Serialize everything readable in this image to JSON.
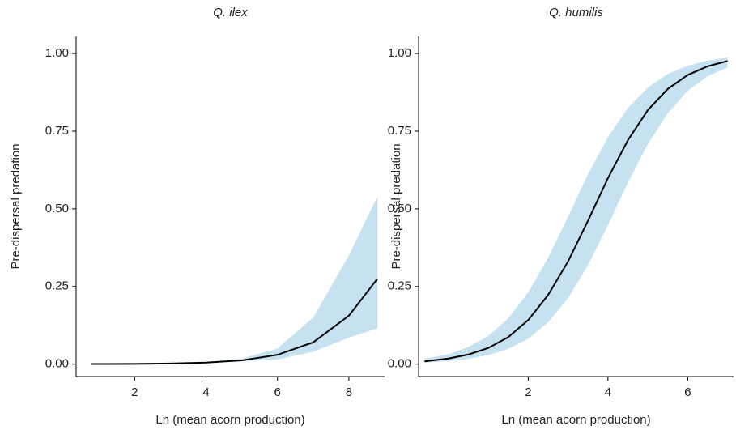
{
  "chart_data": [
    {
      "type": "line",
      "title": "Q. ilex",
      "x_label": "Ln (mean acorn production)",
      "y_label": "Pre-dispersal predation",
      "x": [
        0.77,
        1,
        2,
        3,
        4,
        5,
        6,
        7,
        8,
        8.8
      ],
      "series": [
        {
          "color": "#000000",
          "values": [
            0.0003,
            0.0003,
            0.0008,
            0.002,
            0.005,
            0.012,
            0.03,
            0.07,
            0.156,
            0.275
          ]
        }
      ],
      "band": {
        "color": "#c6e2f0",
        "lower": [
          0.0002,
          0.0002,
          0.0005,
          0.0015,
          0.004,
          0.009,
          0.015,
          0.04,
          0.085,
          0.115
        ],
        "upper": [
          0.0005,
          0.0005,
          0.001,
          0.003,
          0.007,
          0.018,
          0.05,
          0.15,
          0.35,
          0.54
        ]
      },
      "xlim": [
        0.36,
        9.0
      ],
      "ylim": [
        -0.04,
        1.055
      ],
      "xticks": [
        2,
        4,
        6,
        8
      ],
      "yticks": [
        {
          "value": 0,
          "label": "0.00"
        },
        {
          "value": 0.25,
          "label": "0.25"
        },
        {
          "value": 0.5,
          "label": "0.50"
        },
        {
          "value": 0.75,
          "label": "0.75"
        },
        {
          "value": 1,
          "label": "1.00"
        }
      ]
    },
    {
      "type": "line",
      "title": "Q. humilis",
      "x_label": "Ln (mean acorn production)",
      "y_label": "Pre-dispersal predation",
      "x": [
        -0.6,
        0,
        0.5,
        1,
        1.5,
        2,
        2.5,
        3,
        3.5,
        4,
        4.5,
        5,
        5.5,
        6,
        6.5,
        7
      ],
      "series": [
        {
          "color": "#000000",
          "values": [
            0.009,
            0.018,
            0.031,
            0.052,
            0.087,
            0.142,
            0.223,
            0.331,
            0.462,
            0.599,
            0.721,
            0.818,
            0.886,
            0.931,
            0.959,
            0.976
          ]
        }
      ],
      "band": {
        "color": "#c6e2f0",
        "lower": [
          0.005,
          0.01,
          0.017,
          0.029,
          0.049,
          0.082,
          0.135,
          0.213,
          0.319,
          0.448,
          0.584,
          0.709,
          0.808,
          0.88,
          0.927,
          0.956
        ],
        "upper": [
          0.017,
          0.032,
          0.055,
          0.091,
          0.148,
          0.231,
          0.343,
          0.475,
          0.611,
          0.731,
          0.825,
          0.891,
          0.934,
          0.961,
          0.977,
          0.987
        ]
      },
      "xlim": [
        -0.75,
        7.15
      ],
      "ylim": [
        -0.04,
        1.055
      ],
      "xticks": [
        2,
        4,
        6
      ],
      "yticks": [
        {
          "value": 0,
          "label": "0.00"
        },
        {
          "value": 0.25,
          "label": "0.25"
        },
        {
          "value": 0.5,
          "label": "0.50"
        },
        {
          "value": 0.75,
          "label": "0.75"
        },
        {
          "value": 1,
          "label": "1.00"
        }
      ]
    }
  ]
}
